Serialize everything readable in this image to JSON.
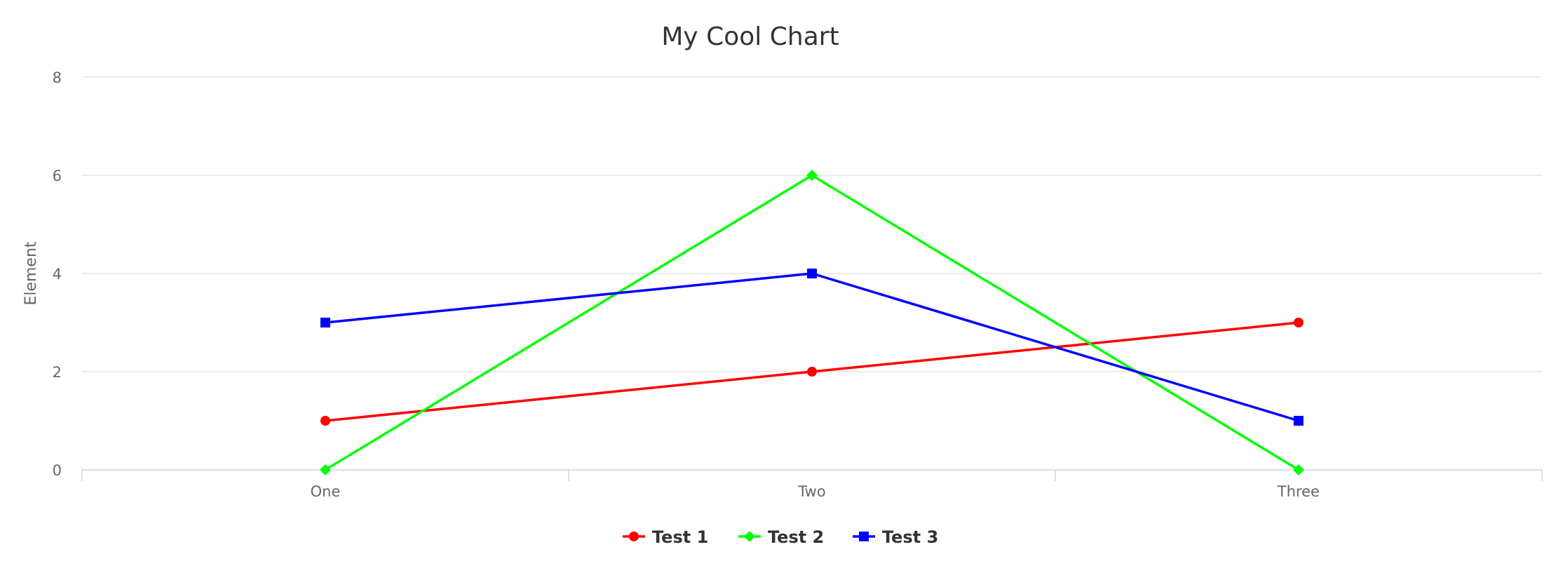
{
  "chart_data": {
    "type": "line",
    "title": "My Cool Chart",
    "xlabel": "",
    "ylabel": "Element",
    "categories": [
      "One",
      "Two",
      "Three"
    ],
    "ylim": [
      0,
      8
    ],
    "yticks": [
      0,
      2,
      4,
      6,
      8
    ],
    "grid": true,
    "legend_position": "bottom-center",
    "series": [
      {
        "name": "Test 1",
        "values": [
          1,
          2,
          3
        ],
        "color": "#ff0000",
        "marker": "circle"
      },
      {
        "name": "Test 2",
        "values": [
          0,
          6,
          0
        ],
        "color": "#00ff00",
        "marker": "diamond"
      },
      {
        "name": "Test 3",
        "values": [
          3,
          4,
          1
        ],
        "color": "#0000ff",
        "marker": "square"
      }
    ]
  }
}
